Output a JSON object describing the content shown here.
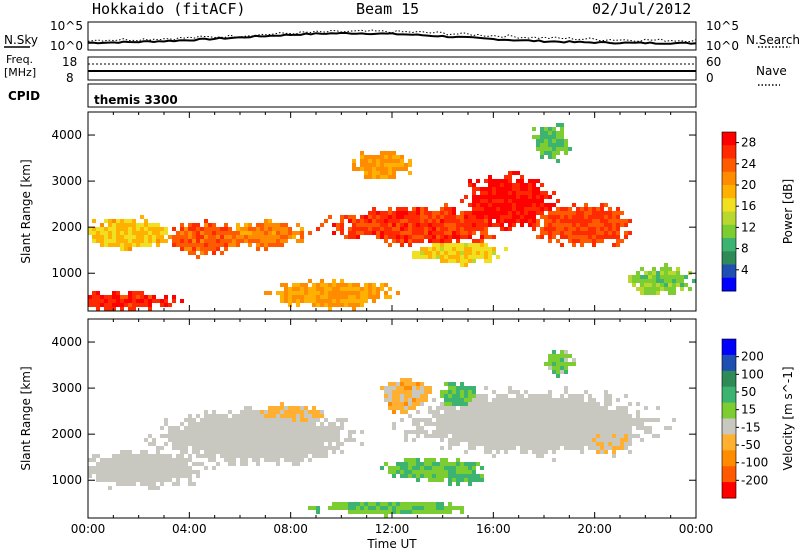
{
  "header": {
    "station": "Hokkaido (fitACF)",
    "beam": "Beam 15",
    "date": "02/Jul/2012"
  },
  "top_panels": {
    "nsky_label": "N.Sky",
    "nsky_ticks": [
      "10^5",
      "10^0"
    ],
    "nsearch_label": "N.Search",
    "nsearch_ticks": [
      "10^5",
      "10^0"
    ],
    "freq_label": "Freq.",
    "freq_unit": "[MHz]",
    "freq_ticks": [
      "18",
      "8"
    ],
    "nave_label": "Nave",
    "nave_ticks": [
      "60",
      "0"
    ],
    "cpid_label": "CPID",
    "cpid_value": "themis 3300"
  },
  "colors": {
    "power_scale": [
      "#0000ff",
      "#1f4fb0",
      "#2e8b57",
      "#3cb371",
      "#7ccd32",
      "#b8d82f",
      "#f0e020",
      "#ffb000",
      "#ff8c00",
      "#ff5a00",
      "#ff2a00",
      "#ff0000"
    ],
    "velocity_scale": [
      "#ff0000",
      "#ff5a00",
      "#ff8c00",
      "#ffb030",
      "#c8c8c0",
      "#7ccd32",
      "#3cb371",
      "#2e8b57",
      "#1f4fb0",
      "#0000ff"
    ],
    "ground_scatter": "#c8c8c0"
  },
  "chart_data": [
    {
      "type": "heatmap",
      "panel": "power",
      "xlabel": "",
      "ylabel": "Slant Range [km]",
      "xlim": [
        0,
        24
      ],
      "ylim": [
        180,
        4500
      ],
      "yticks": [
        "1000",
        "2000",
        "3000",
        "4000"
      ],
      "colorbar_label": "Power [dB]",
      "colorbar_ticks": [
        "4",
        "8",
        "12",
        "16",
        "20",
        "24",
        "28"
      ],
      "colorbar_range": [
        0,
        30
      ],
      "blobs": [
        {
          "t": 0.8,
          "r": 350,
          "dt": 2.5,
          "dr": 200,
          "value": 27
        },
        {
          "t": 4.5,
          "r": 1700,
          "dt": 1.5,
          "dr": 350,
          "value": 24
        },
        {
          "t": 1.5,
          "r": 1800,
          "dt": 1.8,
          "dr": 350,
          "value": 18
        },
        {
          "t": 7.0,
          "r": 1800,
          "dt": 1.5,
          "dr": 300,
          "value": 22
        },
        {
          "t": 13.0,
          "r": 2000,
          "dt": 3.5,
          "dr": 400,
          "value": 26
        },
        {
          "t": 16.5,
          "r": 2500,
          "dt": 1.8,
          "dr": 600,
          "value": 28
        },
        {
          "t": 19.5,
          "r": 2000,
          "dt": 2.0,
          "dr": 450,
          "value": 25
        },
        {
          "t": 9.5,
          "r": 500,
          "dt": 2.5,
          "dr": 300,
          "value": 20
        },
        {
          "t": 14.5,
          "r": 1400,
          "dt": 2.0,
          "dr": 250,
          "value": 17
        },
        {
          "t": 22.5,
          "r": 800,
          "dt": 1.2,
          "dr": 300,
          "value": 12
        },
        {
          "t": 11.5,
          "r": 3300,
          "dt": 1.2,
          "dr": 300,
          "value": 20
        },
        {
          "t": 18.2,
          "r": 3800,
          "dt": 0.8,
          "dr": 400,
          "value": 10
        }
      ]
    },
    {
      "type": "heatmap",
      "panel": "velocity",
      "xlabel": "Time UT",
      "ylabel": "Slant Range [km]",
      "xlim": [
        0,
        24
      ],
      "ylim": [
        180,
        4500
      ],
      "xticks": [
        "00:00",
        "04:00",
        "08:00",
        "12:00",
        "16:00",
        "20:00",
        "00:00"
      ],
      "yticks": [
        "1000",
        "2000",
        "3000",
        "4000"
      ],
      "colorbar_label": "Velocity [m s^-1]",
      "colorbar_ticks": [
        "200",
        "100",
        "50",
        "15",
        "-15",
        "-50",
        "-100",
        "-200"
      ],
      "colorbar_range": [
        -250,
        250
      ],
      "blobs": [
        {
          "t": 6.5,
          "r": 1900,
          "dt": 4.0,
          "dr": 600,
          "value": 0
        },
        {
          "t": 17.5,
          "r": 2200,
          "dt": 5.0,
          "dr": 700,
          "value": 0
        },
        {
          "t": 2.0,
          "r": 1200,
          "dt": 2.5,
          "dr": 400,
          "value": 0
        },
        {
          "t": 8.0,
          "r": 2400,
          "dt": 1.5,
          "dr": 200,
          "value": -60
        },
        {
          "t": 12.5,
          "r": 2800,
          "dt": 1.0,
          "dr": 400,
          "value": -70
        },
        {
          "t": 14.5,
          "r": 2800,
          "dt": 0.8,
          "dr": 300,
          "value": 60
        },
        {
          "t": 13.5,
          "r": 1200,
          "dt": 2.0,
          "dr": 250,
          "value": 40
        },
        {
          "t": 14.8,
          "r": 1000,
          "dt": 0.8,
          "dr": 150,
          "value": 60
        },
        {
          "t": 12.0,
          "r": 350,
          "dt": 3.0,
          "dr": 150,
          "value": 40
        },
        {
          "t": 18.5,
          "r": 3500,
          "dt": 0.6,
          "dr": 300,
          "value": 30
        },
        {
          "t": 20.5,
          "r": 1800,
          "dt": 1.0,
          "dr": 300,
          "value": -40
        }
      ]
    }
  ]
}
